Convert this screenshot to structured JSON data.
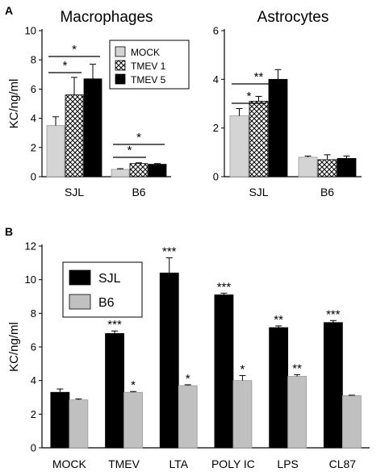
{
  "panel_labels": {
    "a": "A",
    "b": "B"
  },
  "chart_data": [
    {
      "id": "macrophages",
      "type": "bar",
      "title": "Macrophages",
      "ylabel": "KC/ng/ml",
      "xlabel": "",
      "ylim": [
        0,
        10
      ],
      "yticks": [
        0,
        2,
        4,
        6,
        8,
        10
      ],
      "grid": false,
      "categories": [
        "SJL",
        "B6"
      ],
      "legend": {
        "position": "top-right"
      },
      "series": [
        {
          "name": "MOCK",
          "pattern": "light-gray",
          "color": "#d4d4d4",
          "values": [
            3.5,
            0.5
          ],
          "errors": [
            0.6,
            0.05
          ]
        },
        {
          "name": "TMEV 1",
          "pattern": "crosshatch",
          "color": "#ffffff",
          "values": [
            5.6,
            0.9
          ],
          "errors": [
            1.2,
            0.05
          ]
        },
        {
          "name": "TMEV 5",
          "pattern": "black",
          "color": "#000000",
          "values": [
            6.7,
            0.85
          ],
          "errors": [
            1.0,
            0.05
          ]
        }
      ],
      "significance": [
        {
          "category": "SJL",
          "from": "MOCK",
          "to": "TMEV 1",
          "label": "*"
        },
        {
          "category": "SJL",
          "from": "MOCK",
          "to": "TMEV 5",
          "label": "*"
        },
        {
          "category": "B6",
          "from": "MOCK",
          "to": "TMEV 1",
          "label": "*"
        },
        {
          "category": "B6",
          "from": "MOCK",
          "to": "TMEV 5",
          "label": "*"
        }
      ]
    },
    {
      "id": "astrocytes",
      "type": "bar",
      "title": "Astrocytes",
      "ylabel": "",
      "xlabel": "",
      "ylim": [
        0,
        6
      ],
      "yticks": [
        0,
        2,
        4,
        6
      ],
      "grid": false,
      "categories": [
        "SJL",
        "B6"
      ],
      "series": [
        {
          "name": "MOCK",
          "pattern": "light-gray",
          "color": "#d4d4d4",
          "values": [
            2.5,
            0.8
          ],
          "errors": [
            0.3,
            0.05
          ]
        },
        {
          "name": "TMEV 1",
          "pattern": "crosshatch",
          "color": "#ffffff",
          "values": [
            3.1,
            0.7
          ],
          "errors": [
            0.2,
            0.2
          ]
        },
        {
          "name": "TMEV 5",
          "pattern": "black",
          "color": "#000000",
          "values": [
            4.0,
            0.75
          ],
          "errors": [
            0.4,
            0.1
          ]
        }
      ],
      "significance": [
        {
          "category": "SJL",
          "from": "MOCK",
          "to": "TMEV 1",
          "label": "*"
        },
        {
          "category": "SJL",
          "from": "MOCK",
          "to": "TMEV 5",
          "label": "**"
        }
      ]
    },
    {
      "id": "stimuli",
      "type": "bar",
      "title": "",
      "ylabel": "KC/ng/ml",
      "xlabel": "",
      "ylim": [
        0,
        12
      ],
      "yticks": [
        0,
        2,
        4,
        6,
        8,
        10,
        12
      ],
      "grid": false,
      "categories": [
        "MOCK",
        "TMEV",
        "LTA",
        "POLY IC",
        "LPS",
        "CL87"
      ],
      "legend": {
        "position": "top-left"
      },
      "series": [
        {
          "name": "SJL",
          "color": "#000000",
          "values": [
            3.3,
            6.8,
            10.4,
            9.1,
            7.15,
            7.45
          ],
          "errors": [
            0.2,
            0.15,
            0.9,
            0.1,
            0.1,
            0.12
          ],
          "stars": [
            "",
            "***",
            "***",
            "***",
            "**",
            "***"
          ]
        },
        {
          "name": "B6",
          "color": "#c0c0c0",
          "values": [
            2.85,
            3.3,
            3.7,
            4.0,
            4.25,
            3.1
          ],
          "errors": [
            0.06,
            0.05,
            0.05,
            0.3,
            0.1,
            0.03
          ],
          "stars": [
            "",
            "*",
            "*",
            "*",
            "**",
            ""
          ]
        }
      ]
    }
  ]
}
